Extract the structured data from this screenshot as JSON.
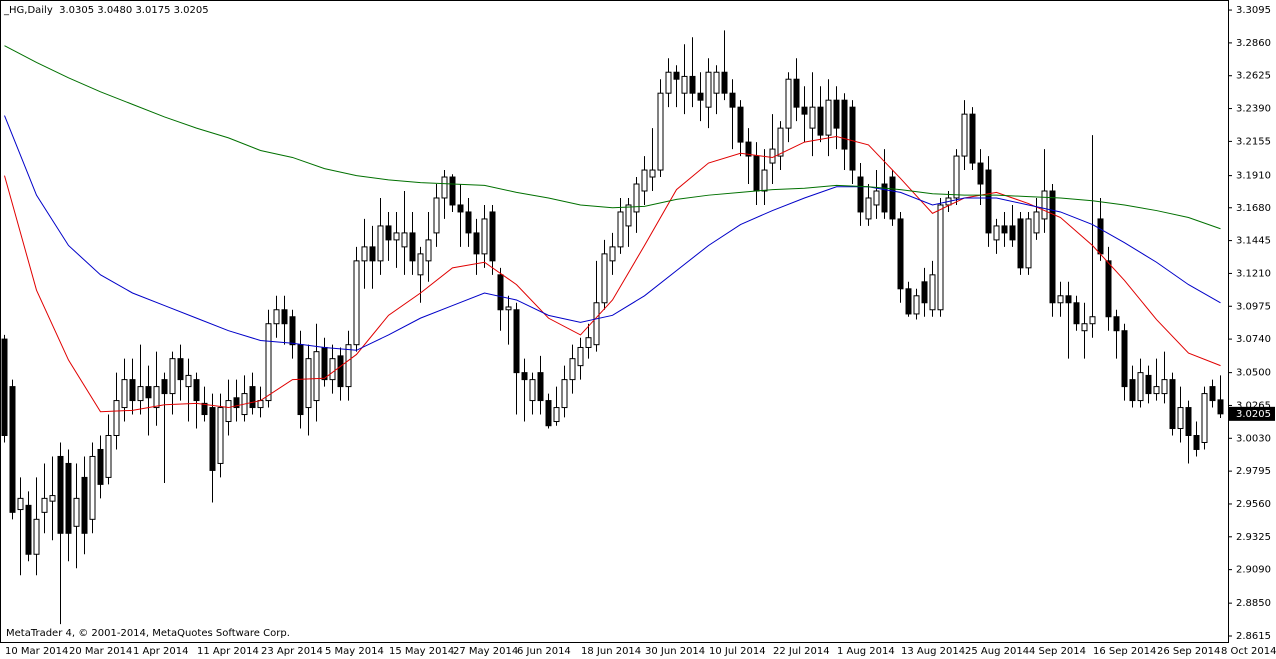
{
  "chart_data": {
    "type": "candlestick",
    "title": "_HG,Daily  3.0305 3.0480 3.0175 3.0205",
    "copyright": "MetaTrader 4, © 2001-2014, MetaQuotes Software Corp.",
    "last_price": 3.0205,
    "ylim": [
      2.8572,
      3.3167
    ],
    "yticks": [
      3.3095,
      {
        "value": 3.286,
        "label": "3.2860"
      },
      3.2625,
      {
        "value": 3.239,
        "label": "3.2390"
      },
      3.2155,
      {
        "value": 3.191,
        "label": "3.1910"
      },
      {
        "value": 3.168,
        "label": "3.1680"
      },
      3.1445,
      {
        "value": 3.121,
        "label": "3.1210"
      },
      3.0975,
      {
        "value": 3.074,
        "label": "3.0740"
      },
      {
        "value": 3.05,
        "label": "3.0500"
      },
      3.0265,
      {
        "value": 3.003,
        "label": "3.0030"
      },
      2.9795,
      {
        "value": 2.956,
        "label": "2.9560"
      },
      2.9325,
      {
        "value": 2.909,
        "label": "2.9090"
      },
      {
        "value": 2.885,
        "label": "2.8850"
      },
      2.8615
    ],
    "grid": false,
    "bull_color": "#ffffff",
    "bear_color": "#000000",
    "categories": [
      "10 Mar 2014",
      null,
      null,
      null,
      null,
      null,
      null,
      null,
      "20 Mar 2014",
      null,
      null,
      null,
      null,
      null,
      null,
      null,
      "1 Apr 2014",
      null,
      null,
      null,
      null,
      null,
      null,
      null,
      "11 Apr 2014",
      null,
      null,
      null,
      null,
      null,
      null,
      null,
      "23 Apr 2014",
      null,
      null,
      null,
      null,
      null,
      null,
      null,
      "5 May 2014",
      null,
      null,
      null,
      null,
      null,
      null,
      null,
      "15 May 2014",
      null,
      null,
      null,
      null,
      null,
      null,
      null,
      "27 May 2014",
      null,
      null,
      null,
      null,
      null,
      null,
      null,
      "6 Jun 2014",
      null,
      null,
      null,
      null,
      null,
      null,
      null,
      "18 Jun 2014",
      null,
      null,
      null,
      null,
      null,
      null,
      null,
      "30 Jun 2014",
      null,
      null,
      null,
      null,
      null,
      null,
      null,
      "10 Jul 2014",
      null,
      null,
      null,
      null,
      null,
      null,
      null,
      "22 Jul 2014",
      null,
      null,
      null,
      null,
      null,
      null,
      null,
      "1 Aug 2014",
      null,
      null,
      null,
      null,
      null,
      null,
      null,
      "13 Aug 2014",
      null,
      null,
      null,
      null,
      null,
      null,
      null,
      "25 Aug 2014",
      null,
      null,
      null,
      null,
      null,
      null,
      null,
      "4 Sep 2014",
      null,
      null,
      null,
      null,
      null,
      null,
      null,
      "16 Sep 2014",
      null,
      null,
      null,
      null,
      null,
      null,
      null,
      "26 Sep 2014",
      null,
      null,
      null,
      null,
      null,
      null,
      null,
      "8 Oct 2014"
    ],
    "open": [
      3.074,
      3.04,
      2.952,
      2.955,
      2.92,
      2.95,
      2.958,
      2.99,
      2.985,
      2.94,
      2.975,
      2.945,
      2.995,
      2.975,
      3.005,
      3.025,
      3.045,
      3.03,
      3.04,
      3.025,
      3.045,
      3.035,
      3.06,
      3.04,
      3.045,
      3.028,
      3.025,
      2.985,
      3.015,
      3.032,
      3.02,
      3.04,
      3.025,
      3.03,
      3.085,
      3.095,
      3.09,
      3.07,
      3.025,
      3.03,
      3.068,
      3.045,
      3.062,
      3.04,
      3.07,
      3.13,
      3.14,
      3.13,
      3.155,
      3.145,
      3.14,
      3.15,
      3.12,
      3.13,
      3.15,
      3.175,
      3.19,
      3.17,
      3.165,
      3.15,
      3.135,
      3.165,
      3.12,
      3.095,
      3.095,
      3.05,
      3.03,
      3.05,
      3.03,
      3.015,
      3.025,
      3.045,
      3.055,
      3.068,
      3.07,
      3.1,
      3.13,
      3.14,
      3.155,
      3.165,
      3.18,
      3.19,
      3.195,
      3.25,
      3.265,
      3.25,
      3.262,
      3.25,
      3.24,
      3.25,
      3.265,
      3.25,
      3.24,
      3.215,
      3.205,
      3.18,
      3.2,
      3.205,
      3.225,
      3.26,
      3.24,
      3.225,
      3.24,
      3.22,
      3.245,
      3.245,
      3.24,
      3.19,
      3.16,
      3.17,
      3.185,
      3.19,
      3.16,
      3.11,
      3.092,
      3.115,
      3.095,
      3.095,
      3.17,
      3.175,
      3.205,
      3.235,
      3.2,
      3.195,
      3.145,
      3.155,
      3.155,
      3.16,
      3.125,
      3.15,
      3.16,
      3.18,
      3.1,
      3.105,
      3.1,
      3.08,
      3.085,
      3.16,
      3.13,
      3.09,
      3.08,
      3.045,
      3.03,
      3.048,
      3.035,
      3.035,
      3.045,
      3.01,
      3.025,
      3.005,
      3.0,
      3.04,
      3.0305
    ],
    "high": [
      3.077,
      3.045,
      2.975,
      2.965,
      2.975,
      2.985,
      2.99,
      3.0,
      2.995,
      2.985,
      2.99,
      3.0,
      3.005,
      3.02,
      3.05,
      3.06,
      3.06,
      3.07,
      3.055,
      3.065,
      3.05,
      3.065,
      3.07,
      3.06,
      3.05,
      3.04,
      3.035,
      3.035,
      3.045,
      3.045,
      3.048,
      3.05,
      3.04,
      3.095,
      3.105,
      3.105,
      3.095,
      3.08,
      3.07,
      3.085,
      3.075,
      3.07,
      3.068,
      3.08,
      3.14,
      3.16,
      3.155,
      3.175,
      3.165,
      3.165,
      3.18,
      3.165,
      3.14,
      3.165,
      3.185,
      3.195,
      3.192,
      3.185,
      3.175,
      3.16,
      3.17,
      3.17,
      3.125,
      3.105,
      3.1,
      3.06,
      3.05,
      3.062,
      3.035,
      3.04,
      3.055,
      3.07,
      3.075,
      3.085,
      3.13,
      3.145,
      3.15,
      3.175,
      3.175,
      3.19,
      3.205,
      3.225,
      3.26,
      3.275,
      3.27,
      3.285,
      3.29,
      3.265,
      3.275,
      3.27,
      3.295,
      3.26,
      3.245,
      3.225,
      3.215,
      3.21,
      3.235,
      3.23,
      3.265,
      3.275,
      3.255,
      3.265,
      3.255,
      3.26,
      3.255,
      3.25,
      3.245,
      3.2,
      3.185,
      3.195,
      3.21,
      3.195,
      3.165,
      3.115,
      3.11,
      3.125,
      3.13,
      3.175,
      3.18,
      3.21,
      3.245,
      3.24,
      3.21,
      3.205,
      3.16,
      3.165,
      3.17,
      3.165,
      3.165,
      3.175,
      3.21,
      3.185,
      3.115,
      3.115,
      3.105,
      3.1,
      3.22,
      3.175,
      3.14,
      3.095,
      3.085,
      3.055,
      3.06,
      3.055,
      3.06,
      3.065,
      3.05,
      3.04,
      3.03,
      3.015,
      3.04,
      3.045,
      3.048
    ],
    "low": [
      3.0,
      2.945,
      2.905,
      2.915,
      2.905,
      2.935,
      2.93,
      2.87,
      2.915,
      2.91,
      2.92,
      2.935,
      2.96,
      2.97,
      2.995,
      3.015,
      3.02,
      3.02,
      3.005,
      3.012,
      2.971,
      3.02,
      3.03,
      3.015,
      3.01,
      3.015,
      2.957,
      2.975,
      3.005,
      3.015,
      3.015,
      3.02,
      3.018,
      3.025,
      3.075,
      3.07,
      3.06,
      3.01,
      3.005,
      3.015,
      3.04,
      3.035,
      3.03,
      3.03,
      3.065,
      3.11,
      3.11,
      3.12,
      3.13,
      3.125,
      3.12,
      3.12,
      3.1,
      3.115,
      3.14,
      3.16,
      3.165,
      3.14,
      3.14,
      3.12,
      3.125,
      3.12,
      3.08,
      3.07,
      3.02,
      3.015,
      3.02,
      3.02,
      3.01,
      3.012,
      3.018,
      3.035,
      3.045,
      3.06,
      3.065,
      3.095,
      3.12,
      3.135,
      3.14,
      3.15,
      3.17,
      3.18,
      3.19,
      3.24,
      3.24,
      3.235,
      3.24,
      3.23,
      3.225,
      3.235,
      3.245,
      3.21,
      3.205,
      3.185,
      3.17,
      3.17,
      3.185,
      3.195,
      3.215,
      3.23,
      3.215,
      3.205,
      3.215,
      3.205,
      3.21,
      3.195,
      3.185,
      3.155,
      3.155,
      3.16,
      3.16,
      3.155,
      3.1,
      3.09,
      3.088,
      3.09,
      3.09,
      3.09,
      3.165,
      3.17,
      3.195,
      3.195,
      3.17,
      3.14,
      3.135,
      3.14,
      3.14,
      3.12,
      3.12,
      3.145,
      3.15,
      3.09,
      3.09,
      3.06,
      3.08,
      3.06,
      3.075,
      3.13,
      3.08,
      3.06,
      3.03,
      3.025,
      3.025,
      3.028,
      3.03,
      3.028,
      3.005,
      3.0,
      2.985,
      2.99,
      2.995,
      3.025,
      3.0175
    ],
    "close": [
      3.005,
      2.95,
      2.96,
      2.92,
      2.945,
      2.96,
      2.962,
      2.935,
      2.935,
      2.96,
      2.935,
      2.99,
      2.97,
      3.005,
      3.03,
      3.045,
      3.03,
      3.04,
      3.032,
      3.04,
      3.035,
      3.06,
      3.045,
      3.048,
      3.03,
      3.02,
      2.98,
      3.025,
      3.03,
      3.025,
      3.035,
      3.025,
      3.03,
      3.085,
      3.095,
      3.085,
      3.07,
      3.02,
      3.06,
      3.065,
      3.045,
      3.06,
      3.04,
      3.07,
      3.13,
      3.14,
      3.13,
      3.155,
      3.145,
      3.15,
      3.15,
      3.13,
      3.135,
      3.145,
      3.175,
      3.19,
      3.17,
      3.165,
      3.15,
      3.135,
      3.16,
      3.13,
      3.095,
      3.097,
      3.05,
      3.045,
      3.045,
      3.03,
      3.012,
      3.025,
      3.045,
      3.06,
      3.068,
      3.075,
      3.1,
      3.135,
      3.14,
      3.165,
      3.17,
      3.185,
      3.195,
      3.195,
      3.25,
      3.265,
      3.26,
      3.262,
      3.25,
      3.245,
      3.265,
      3.265,
      3.25,
      3.24,
      3.215,
      3.205,
      3.18,
      3.195,
      3.21,
      3.225,
      3.26,
      3.24,
      3.235,
      3.24,
      3.22,
      3.245,
      3.225,
      3.21,
      3.195,
      3.165,
      3.175,
      3.18,
      3.165,
      3.16,
      3.11,
      3.092,
      3.105,
      3.1,
      3.12,
      3.17,
      3.175,
      3.205,
      3.235,
      3.2,
      3.185,
      3.15,
      3.155,
      3.15,
      3.145,
      3.125,
      3.16,
      3.165,
      3.18,
      3.1,
      3.105,
      3.1,
      3.085,
      3.085,
      3.09,
      3.135,
      3.09,
      3.08,
      3.04,
      3.03,
      3.05,
      3.035,
      3.04,
      3.045,
      3.01,
      3.025,
      3.005,
      2.995,
      3.035,
      3.03,
      3.0205
    ],
    "series": [
      {
        "color": "#e00000",
        "x": [
          0,
          4,
          8,
          12,
          16,
          20,
          24,
          28,
          32,
          36,
          40,
          44,
          48,
          52,
          56,
          60,
          64,
          68,
          72,
          76,
          80,
          84,
          88,
          92,
          96,
          100,
          104,
          108,
          112,
          116,
          120,
          124,
          128,
          132,
          136,
          140,
          144,
          148,
          152
        ],
        "values": [
          3.191,
          3.109,
          3.059,
          3.022,
          3.023,
          3.027,
          3.028,
          3.025,
          3.03,
          3.045,
          3.046,
          3.063,
          3.091,
          3.107,
          3.125,
          3.129,
          3.113,
          3.089,
          3.077,
          3.102,
          3.141,
          3.181,
          3.2,
          3.207,
          3.204,
          3.215,
          3.219,
          3.213,
          3.189,
          3.164,
          3.175,
          3.179,
          3.171,
          3.161,
          3.141,
          3.116,
          3.088,
          3.064,
          3.055
        ]
      },
      {
        "color": "#0000c8",
        "x": [
          0,
          4,
          8,
          12,
          16,
          20,
          24,
          28,
          32,
          36,
          40,
          44,
          48,
          52,
          56,
          60,
          64,
          68,
          72,
          76,
          80,
          84,
          88,
          92,
          96,
          100,
          104,
          108,
          112,
          116,
          120,
          124,
          128,
          132,
          136,
          140,
          144,
          148,
          152
        ],
        "values": [
          3.234,
          3.177,
          3.141,
          3.12,
          3.107,
          3.098,
          3.089,
          3.08,
          3.073,
          3.071,
          3.068,
          3.066,
          3.077,
          3.089,
          3.098,
          3.107,
          3.102,
          3.091,
          3.086,
          3.091,
          3.105,
          3.123,
          3.141,
          3.156,
          3.166,
          3.175,
          3.183,
          3.183,
          3.179,
          3.17,
          3.175,
          3.175,
          3.17,
          3.165,
          3.156,
          3.143,
          3.129,
          3.113,
          3.1
        ]
      },
      {
        "color": "#007000",
        "x": [
          0,
          4,
          8,
          12,
          16,
          20,
          24,
          28,
          32,
          36,
          40,
          44,
          48,
          52,
          56,
          60,
          64,
          68,
          72,
          76,
          80,
          84,
          88,
          92,
          96,
          100,
          104,
          108,
          112,
          116,
          120,
          124,
          128,
          132,
          136,
          140,
          144,
          148,
          152
        ],
        "values": [
          3.284,
          3.272,
          3.261,
          3.251,
          3.242,
          3.233,
          3.225,
          3.218,
          3.209,
          3.204,
          3.196,
          3.191,
          3.188,
          3.186,
          3.185,
          3.184,
          3.179,
          3.175,
          3.17,
          3.168,
          3.169,
          3.174,
          3.177,
          3.179,
          3.181,
          3.182,
          3.184,
          3.183,
          3.181,
          3.178,
          3.177,
          3.177,
          3.176,
          3.175,
          3.173,
          3.17,
          3.166,
          3.161,
          3.153
        ]
      }
    ]
  }
}
